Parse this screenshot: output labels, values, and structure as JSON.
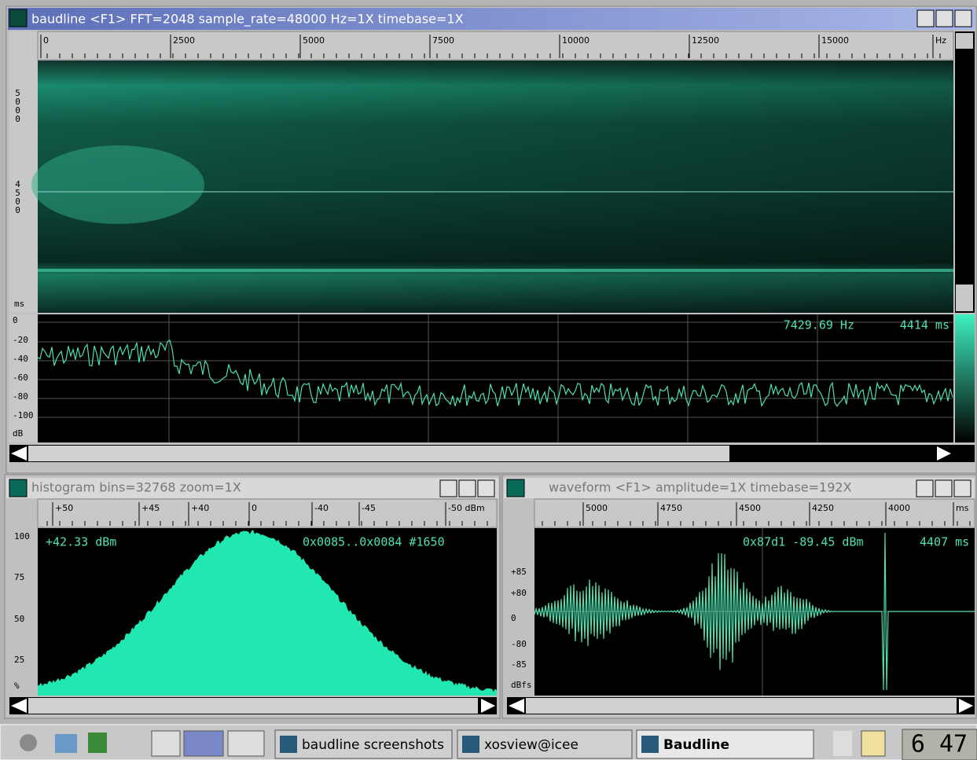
{
  "main_window": {
    "title": "baudline  <F1> FFT=2048 sample_rate=48000 Hz=1X timebase=1X",
    "freq_ticks": [
      "0",
      "2500",
      "5000",
      "7500",
      "10000",
      "12500",
      "15000",
      "Hz"
    ],
    "time_labels": [
      "5000",
      "4500",
      "ms"
    ],
    "db_labels": [
      "0",
      "-20",
      "-40",
      "-60",
      "-80",
      "-100",
      "dB"
    ],
    "readout_freq": "7429.69 Hz",
    "readout_time": "4414 ms"
  },
  "histogram": {
    "title": "histogram  bins=32768 zoom=1X",
    "ticks": [
      "+50",
      "+45",
      "+40",
      "0",
      "-40",
      "-45",
      "-50 dBm"
    ],
    "y_labels": [
      "100",
      "75",
      "50",
      "25",
      "%"
    ],
    "readouts": [
      "+42.33 dBm",
      "0x0085..0x0084 #1650"
    ]
  },
  "waveform": {
    "title": "waveform  <F1> amplitude=1X timebase=192X",
    "ticks": [
      "5000",
      "4750",
      "4500",
      "4250",
      "4000",
      "ms"
    ],
    "y_labels": [
      "+85",
      "+80",
      "0",
      "-80",
      "-85",
      "dBfs"
    ],
    "readouts": [
      "0x87d1  -89.45 dBm",
      "4407 ms"
    ]
  },
  "taskbar": {
    "tasks": [
      "baudline screenshots",
      "xosview@icee",
      "Baudline"
    ],
    "clock": "6 47"
  }
}
